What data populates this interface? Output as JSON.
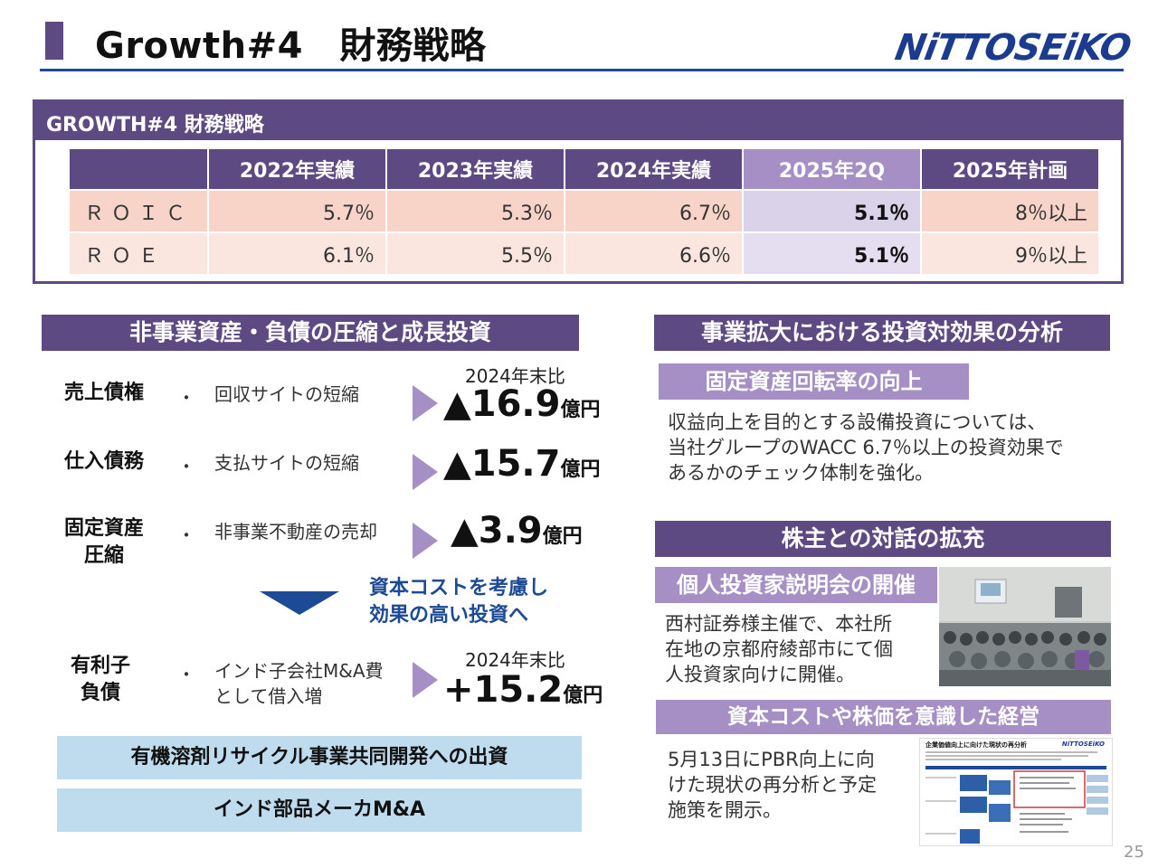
{
  "header": {
    "title": "Growth#4　財務戦略",
    "logo_text": "NiTTOSEiKO"
  },
  "table_block": {
    "title": "GROWTH#4 財務戦略",
    "columns": [
      "",
      "2022年実績",
      "2023年実績",
      "2024年実績",
      "2025年2Q",
      "2025年計画"
    ],
    "rows": [
      {
        "label": "ＲＯＩＣ",
        "values": [
          "5.7％",
          "5.3％",
          "6.7％",
          "5.1％",
          "8％以上"
        ]
      },
      {
        "label": "ＲＯＥ",
        "values": [
          "6.1％",
          "5.5％",
          "6.6％",
          "5.1％",
          "9％以上"
        ]
      }
    ]
  },
  "left_section": {
    "title": "非事業資産・負債の圧縮と成長投資",
    "items": [
      {
        "label": "売上債権",
        "bullet": "・",
        "desc": "回収サイトの短縮",
        "note": "2024年末比",
        "amount": "▲16.9",
        "unit": "億円"
      },
      {
        "label": "仕入債務",
        "bullet": "・",
        "desc": "支払サイトの短縮",
        "note": "",
        "amount": "▲15.7",
        "unit": "億円"
      },
      {
        "label_line1": "固定資産",
        "label_line2": "圧縮",
        "bullet": "・",
        "desc": "非事業不動産の売却",
        "note": "",
        "amount": "▲3.9",
        "unit": "億円"
      },
      {
        "label_line1": "有利子",
        "label_line2": "負債",
        "bullet": "・",
        "desc_line1": "インド子会社M&A費",
        "desc_line2": "として借入増",
        "note": "2024年末比",
        "amount": "+15.2",
        "unit": "億円"
      }
    ],
    "invest_note_line1": "資本コストを考慮し",
    "invest_note_line2": "効果の高い投資へ",
    "boxes": [
      "有機溶剤リサイクル事業共同開発への出資",
      "インド部品メーカM&A"
    ]
  },
  "right_section": {
    "analysis_title": "事業拡大における投資対効果の分析",
    "asset_title": "固定資産回転率の向上",
    "asset_text": [
      "収益向上を目的とする設備投資については、",
      "当社グループのWACC 6.7％以上の投資効果で",
      "あるかのチェック体制を強化。"
    ],
    "dialogue_title": "株主との対話の拡充",
    "briefing_title": "個人投資家説明会の開催",
    "briefing_text": [
      "西村証券様主催で、本社所",
      "在地の京都府綾部市にて個",
      "人投資家向けに開催。"
    ],
    "mgmt_title": "資本コストや株価を意識した経営",
    "mgmt_text": [
      "5月13日にPBR向上に向",
      "けた現状の再分析と予定",
      "施策を開示。"
    ],
    "thumb_title": "企業価値向上に向けた現状の再分析",
    "thumb_logo": "NiTTOSEiKO"
  },
  "footer": {
    "page_number": "25"
  },
  "colors": {
    "purple": "#5e4a82",
    "lilac": "#a58fc4",
    "navy": "#1d4a94",
    "light_blue": "#bfdcef"
  }
}
